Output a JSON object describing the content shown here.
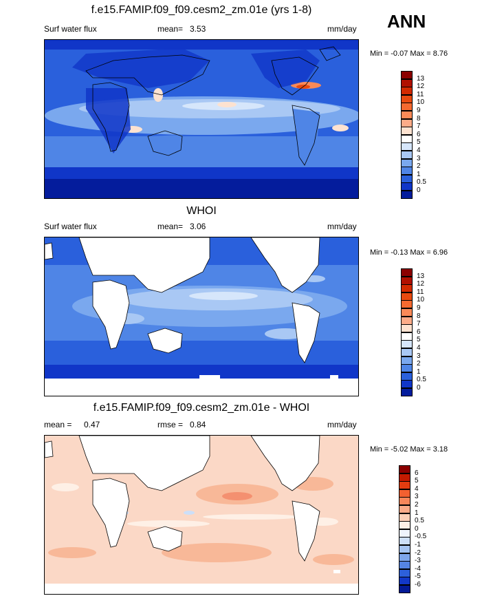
{
  "season": "ANN",
  "units": "mm/day",
  "panels": [
    {
      "title": "f.e15.FAMIP.f09_f09.cesm2_zm.01e (yrs 1-8)",
      "left_label": "Surf water flux",
      "mean_label": "mean=",
      "mean_value": "3.53",
      "min_max": "Min =  -0.07 Max =   8.76",
      "colorbar_labels": [
        "13",
        "12",
        "11",
        "10",
        "9",
        "8",
        "7",
        "6",
        "5",
        "4",
        "3",
        "2",
        "1",
        "0.5",
        "0"
      ],
      "colorbar_colors": [
        "#8b0000",
        "#b01000",
        "#d22a00",
        "#e84a10",
        "#f56a30",
        "#fa8a58",
        "#fcab88",
        "#fde2d0",
        "#ffffff",
        "#d6e6fb",
        "#a9c8f4",
        "#7aa8ee",
        "#4f85e6",
        "#2a60dc",
        "#1036c8",
        "#041c9c"
      ]
    },
    {
      "title": "WHOI",
      "left_label": "Surf water flux",
      "mean_label": "mean=",
      "mean_value": "3.06",
      "min_max": "Min =  -0.13 Max =   6.96",
      "colorbar_labels": [
        "13",
        "12",
        "11",
        "10",
        "9",
        "8",
        "7",
        "6",
        "5",
        "4",
        "3",
        "2",
        "1",
        "0.5",
        "0"
      ],
      "colorbar_colors": [
        "#8b0000",
        "#b01000",
        "#d22a00",
        "#e84a10",
        "#f56a30",
        "#fa8a58",
        "#fcab88",
        "#fde2d0",
        "#ffffff",
        "#d6e6fb",
        "#a9c8f4",
        "#7aa8ee",
        "#4f85e6",
        "#2a60dc",
        "#1036c8",
        "#041c9c"
      ]
    },
    {
      "title": "f.e15.FAMIP.f09_f09.cesm2_zm.01e - WHOI",
      "left_label": "mean =",
      "mean_value": "0.47",
      "rmse_label": "rmse =",
      "rmse_value": "0.84",
      "min_max": "Min =  -5.02 Max =   3.18",
      "colorbar_labels": [
        "6",
        "5",
        "4",
        "3",
        "2",
        "1",
        "0.5",
        "0",
        "-0.5",
        "-1",
        "-2",
        "-3",
        "-4",
        "-5",
        "-6"
      ],
      "colorbar_colors": [
        "#8b0000",
        "#c41a00",
        "#e23c10",
        "#f26030",
        "#f8865a",
        "#fbaa88",
        "#fdd0b8",
        "#fef0e6",
        "#eef3fc",
        "#cddff8",
        "#a6c4f2",
        "#7ea6ec",
        "#5584e4",
        "#2d60da",
        "#1238c8",
        "#031a96"
      ]
    }
  ]
}
